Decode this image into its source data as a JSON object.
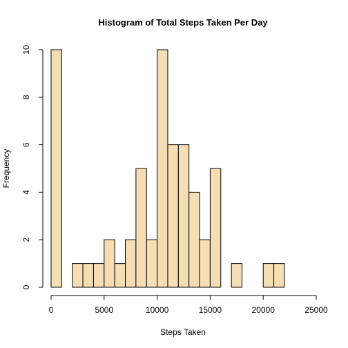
{
  "chart_data": {
    "type": "bar",
    "title": "Histogram of Total Steps Taken Per Day",
    "xlabel": "Steps Taken",
    "ylabel": "Frequency",
    "bar_color": "#f5deb3",
    "bin_width": 1000,
    "bins": [
      {
        "start": 0,
        "end": 1000,
        "value": 10
      },
      {
        "start": 1000,
        "end": 2000,
        "value": 0
      },
      {
        "start": 2000,
        "end": 3000,
        "value": 1
      },
      {
        "start": 3000,
        "end": 4000,
        "value": 1
      },
      {
        "start": 4000,
        "end": 5000,
        "value": 1
      },
      {
        "start": 5000,
        "end": 6000,
        "value": 2
      },
      {
        "start": 6000,
        "end": 7000,
        "value": 1
      },
      {
        "start": 7000,
        "end": 8000,
        "value": 2
      },
      {
        "start": 8000,
        "end": 9000,
        "value": 5
      },
      {
        "start": 9000,
        "end": 10000,
        "value": 2
      },
      {
        "start": 10000,
        "end": 11000,
        "value": 10
      },
      {
        "start": 11000,
        "end": 12000,
        "value": 6
      },
      {
        "start": 12000,
        "end": 13000,
        "value": 6
      },
      {
        "start": 13000,
        "end": 14000,
        "value": 4
      },
      {
        "start": 14000,
        "end": 15000,
        "value": 2
      },
      {
        "start": 15000,
        "end": 16000,
        "value": 5
      },
      {
        "start": 16000,
        "end": 17000,
        "value": 0
      },
      {
        "start": 17000,
        "end": 18000,
        "value": 1
      },
      {
        "start": 18000,
        "end": 19000,
        "value": 0
      },
      {
        "start": 19000,
        "end": 20000,
        "value": 0
      },
      {
        "start": 20000,
        "end": 21000,
        "value": 1
      },
      {
        "start": 21000,
        "end": 22000,
        "value": 1
      }
    ],
    "xlim": [
      0,
      25000
    ],
    "ylim": [
      0,
      10
    ],
    "x_ticks": [
      0,
      5000,
      10000,
      15000,
      20000,
      25000
    ],
    "y_ticks": [
      0,
      2,
      4,
      6,
      8,
      10
    ],
    "grid": false,
    "legend": "none"
  }
}
